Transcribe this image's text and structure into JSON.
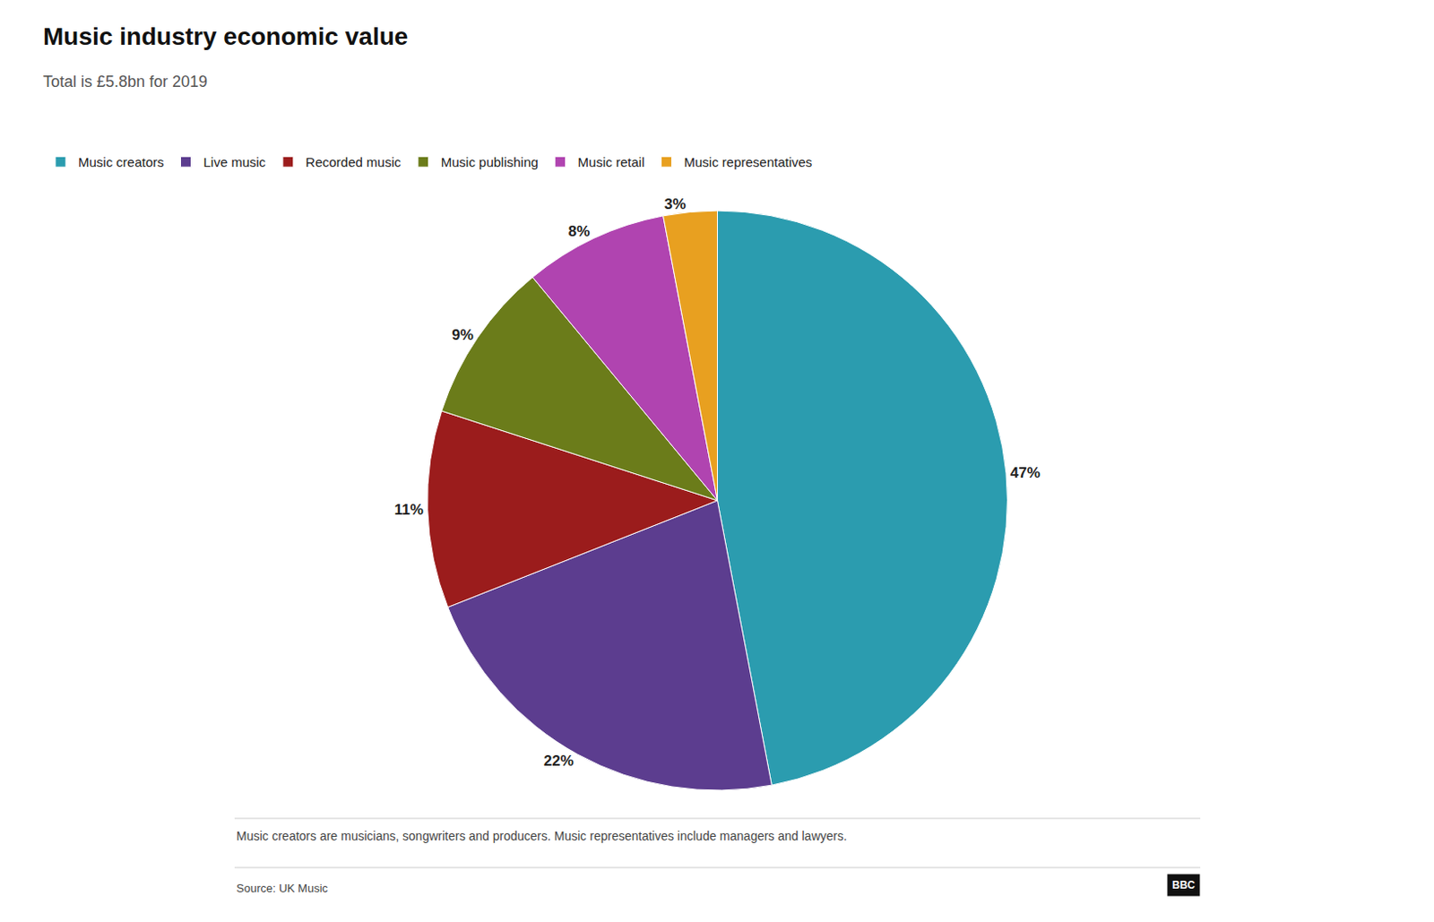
{
  "chart_data": {
    "type": "pie",
    "title": "Music industry economic value",
    "subtitle": "Total is £5.8bn for 2019",
    "categories": [
      "Music creators",
      "Live music",
      "Recorded music",
      "Music publishing",
      "Music retail",
      "Music representatives"
    ],
    "values": [
      47,
      22,
      11,
      9,
      8,
      3
    ],
    "value_labels": [
      "47%",
      "22%",
      "11%",
      "9%",
      "8%",
      "3%"
    ],
    "colors": [
      "#2b9caf",
      "#5c3d8f",
      "#9b1c1c",
      "#6b7c1a",
      "#b044b0",
      "#e8a020"
    ],
    "data_labels": true,
    "legend": "top left",
    "annotations": [
      "Music creators are musicians, songwriters and producers. Music representatives include managers and lawyers.",
      "Source: UK Music",
      "BBC"
    ]
  }
}
